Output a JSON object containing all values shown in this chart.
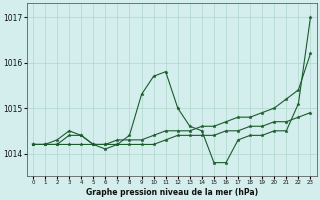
{
  "xlabel": "Graphe pression niveau de la mer (hPa)",
  "background_color": "#d4eeee",
  "grid_color": "#b0d8cc",
  "line_color": "#1a5c2a",
  "hours": [
    0,
    1,
    2,
    3,
    4,
    5,
    6,
    7,
    8,
    9,
    10,
    11,
    12,
    13,
    14,
    15,
    16,
    17,
    18,
    19,
    20,
    21,
    22,
    23
  ],
  "series1": [
    1014.2,
    1014.2,
    1014.3,
    1014.5,
    1014.4,
    1014.2,
    1014.1,
    1014.2,
    1014.4,
    1015.3,
    1015.7,
    1015.8,
    1015.0,
    1014.6,
    1014.5,
    1013.8,
    1013.8,
    1014.3,
    1014.4,
    1014.4,
    1014.5,
    1014.5,
    1015.1,
    1017.0
  ],
  "series2": [
    1014.2,
    1014.2,
    1014.2,
    1014.4,
    1014.4,
    1014.2,
    1014.2,
    1014.3,
    1014.3,
    1014.3,
    1014.4,
    1014.5,
    1014.5,
    1014.5,
    1014.6,
    1014.6,
    1014.7,
    1014.8,
    1014.8,
    1014.9,
    1015.0,
    1015.2,
    1015.4,
    1016.2
  ],
  "series3": [
    1014.2,
    1014.2,
    1014.2,
    1014.2,
    1014.2,
    1014.2,
    1014.2,
    1014.2,
    1014.2,
    1014.2,
    1014.2,
    1014.3,
    1014.4,
    1014.4,
    1014.4,
    1014.4,
    1014.5,
    1014.5,
    1014.6,
    1014.6,
    1014.7,
    1014.7,
    1014.8,
    1014.9
  ],
  "ylim": [
    1013.5,
    1017.3
  ],
  "yticks": [
    1014,
    1015,
    1016,
    1017
  ],
  "xlim": [
    -0.5,
    23.5
  ],
  "xticks": [
    0,
    1,
    2,
    3,
    4,
    5,
    6,
    7,
    8,
    9,
    10,
    11,
    12,
    13,
    14,
    15,
    16,
    17,
    18,
    19,
    20,
    21,
    22,
    23
  ]
}
